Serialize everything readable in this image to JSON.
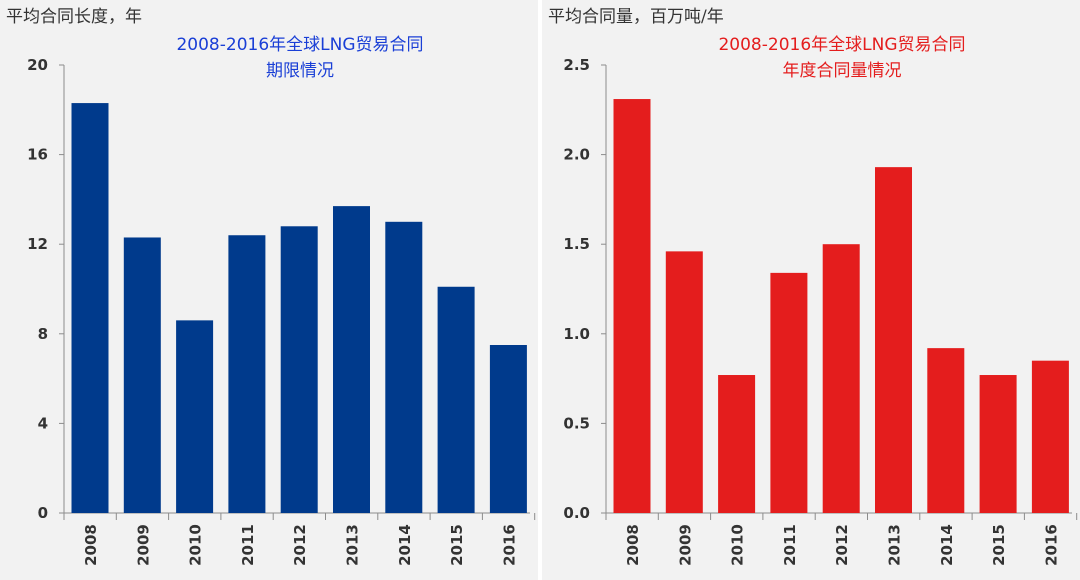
{
  "chart_data": [
    {
      "type": "bar",
      "title_lines": [
        "2008-2016年全球LNG贸易合同",
        "期限情况"
      ],
      "ylabel": "平均合同长度，年",
      "xlabel": "",
      "categories": [
        "2008",
        "2009",
        "2010",
        "2011",
        "2012",
        "2013",
        "2014",
        "2015",
        "2016"
      ],
      "values": [
        18.3,
        12.3,
        8.6,
        12.4,
        12.8,
        13.7,
        13.0,
        10.1,
        7.5
      ],
      "ylim": [
        0,
        20
      ],
      "yticks": [
        0,
        4,
        8,
        12,
        16,
        20
      ],
      "ytick_labels": [
        "0",
        "4",
        "8",
        "12",
        "16",
        "20"
      ],
      "color": "#003a8c",
      "title_color": "#1a3fd6",
      "grid": false
    },
    {
      "type": "bar",
      "title_lines": [
        "2008-2016年全球LNG贸易合同",
        "年度合同量情况"
      ],
      "ylabel": "平均合同量，百万吨/年",
      "xlabel": "",
      "categories": [
        "2008",
        "2009",
        "2010",
        "2011",
        "2012",
        "2013",
        "2014",
        "2015",
        "2016"
      ],
      "values": [
        2.31,
        1.46,
        0.77,
        1.34,
        1.5,
        1.93,
        0.92,
        0.77,
        0.85
      ],
      "ylim": [
        0,
        2.5
      ],
      "yticks": [
        0,
        0.5,
        1.0,
        1.5,
        2.0,
        2.5
      ],
      "ytick_labels": [
        "0.0",
        "0.5",
        "1.0",
        "1.5",
        "2.0",
        "2.5"
      ],
      "color": "#e41d1d",
      "title_color": "#e41d1d",
      "grid": false
    }
  ]
}
